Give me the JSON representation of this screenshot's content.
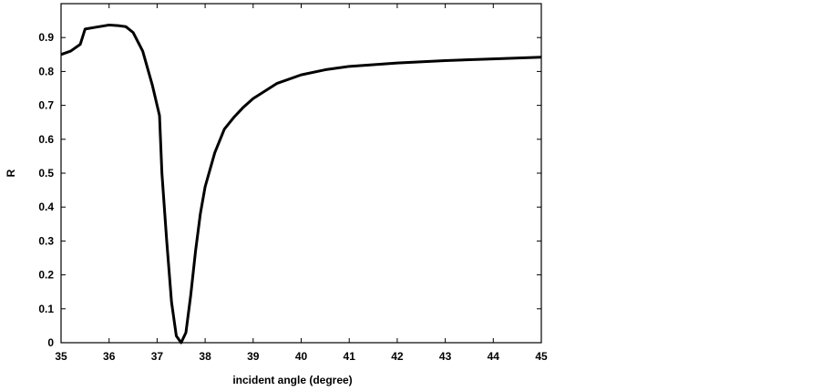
{
  "chart_data": {
    "type": "line",
    "x_label": "incident angle (degree)",
    "y_label": "R",
    "x": [
      35.0,
      35.2,
      35.4,
      35.5,
      35.7,
      36.0,
      36.2,
      36.35,
      36.5,
      36.7,
      36.9,
      37.05,
      37.1,
      37.2,
      37.3,
      37.4,
      37.5,
      37.6,
      37.7,
      37.8,
      37.9,
      38.0,
      38.2,
      38.4,
      38.6,
      38.8,
      39.0,
      39.5,
      40.0,
      40.5,
      41.0,
      42.0,
      43.0,
      44.0,
      45.0
    ],
    "series": [
      {
        "color": "#000000",
        "values": [
          0.85,
          0.86,
          0.88,
          0.925,
          0.93,
          0.937,
          0.935,
          0.932,
          0.915,
          0.86,
          0.76,
          0.67,
          0.5,
          0.3,
          0.12,
          0.02,
          0.0,
          0.03,
          0.14,
          0.27,
          0.38,
          0.46,
          0.56,
          0.63,
          0.665,
          0.695,
          0.72,
          0.765,
          0.79,
          0.805,
          0.815,
          0.825,
          0.832,
          0.837,
          0.842
        ]
      }
    ],
    "xlim": [
      35,
      45
    ],
    "xticks": [
      35,
      36,
      37,
      38,
      39,
      40,
      41,
      42,
      43,
      44,
      45
    ],
    "ylim": [
      0,
      1
    ],
    "yticks": [
      0,
      0.1,
      0.2,
      0.3,
      0.4,
      0.5,
      0.6,
      0.7,
      0.8,
      0.9
    ]
  }
}
